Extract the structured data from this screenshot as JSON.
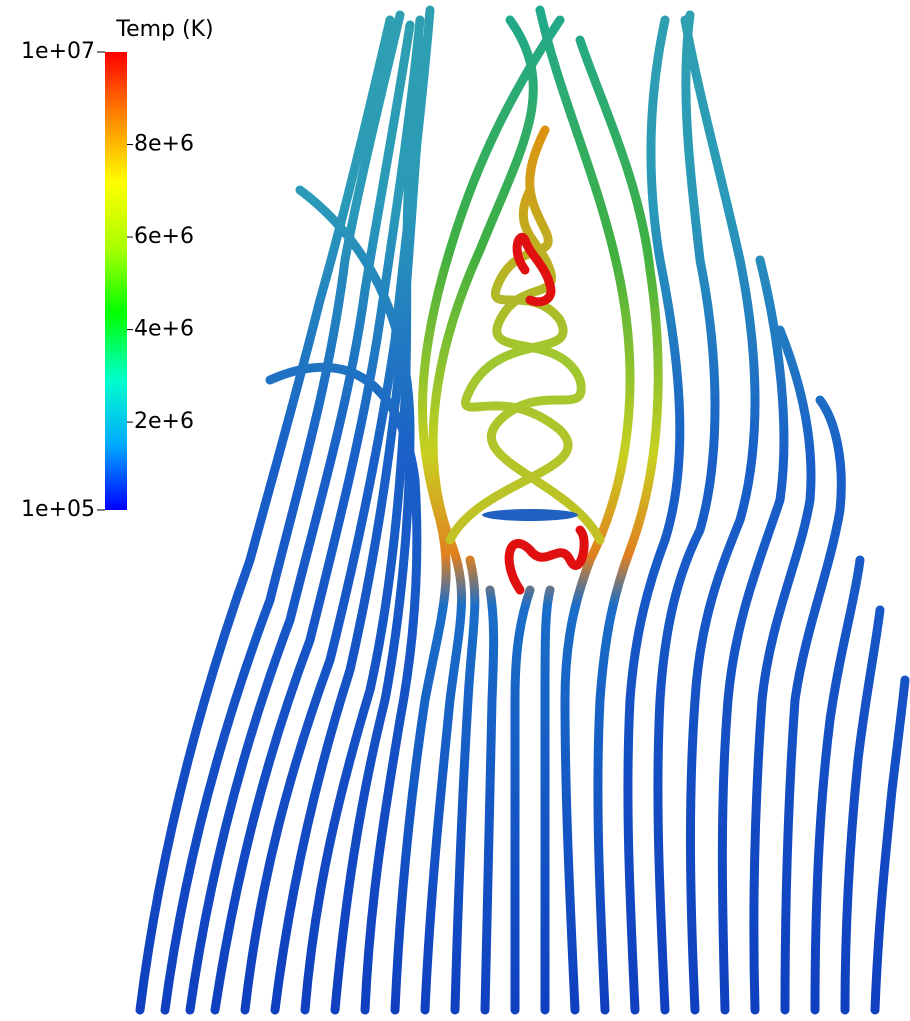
{
  "chart_data": {
    "type": "colorbar",
    "title": "Temp (K)",
    "ylim": [
      100000,
      10000000
    ],
    "yticks": [
      {
        "value": 100000,
        "label": "1e+05"
      },
      {
        "value": 2000000,
        "label": "2e+6"
      },
      {
        "value": 4000000,
        "label": "4e+6"
      },
      {
        "value": 6000000,
        "label": "6e+6"
      },
      {
        "value": 8000000,
        "label": "8e+6"
      },
      {
        "value": 10000000,
        "label": "1e+07"
      }
    ],
    "colors": [
      "#0000ff",
      "#00aaff",
      "#00ffcc",
      "#00ff00",
      "#aaff00",
      "#ffff00",
      "#ff8800",
      "#ff0000"
    ]
  }
}
